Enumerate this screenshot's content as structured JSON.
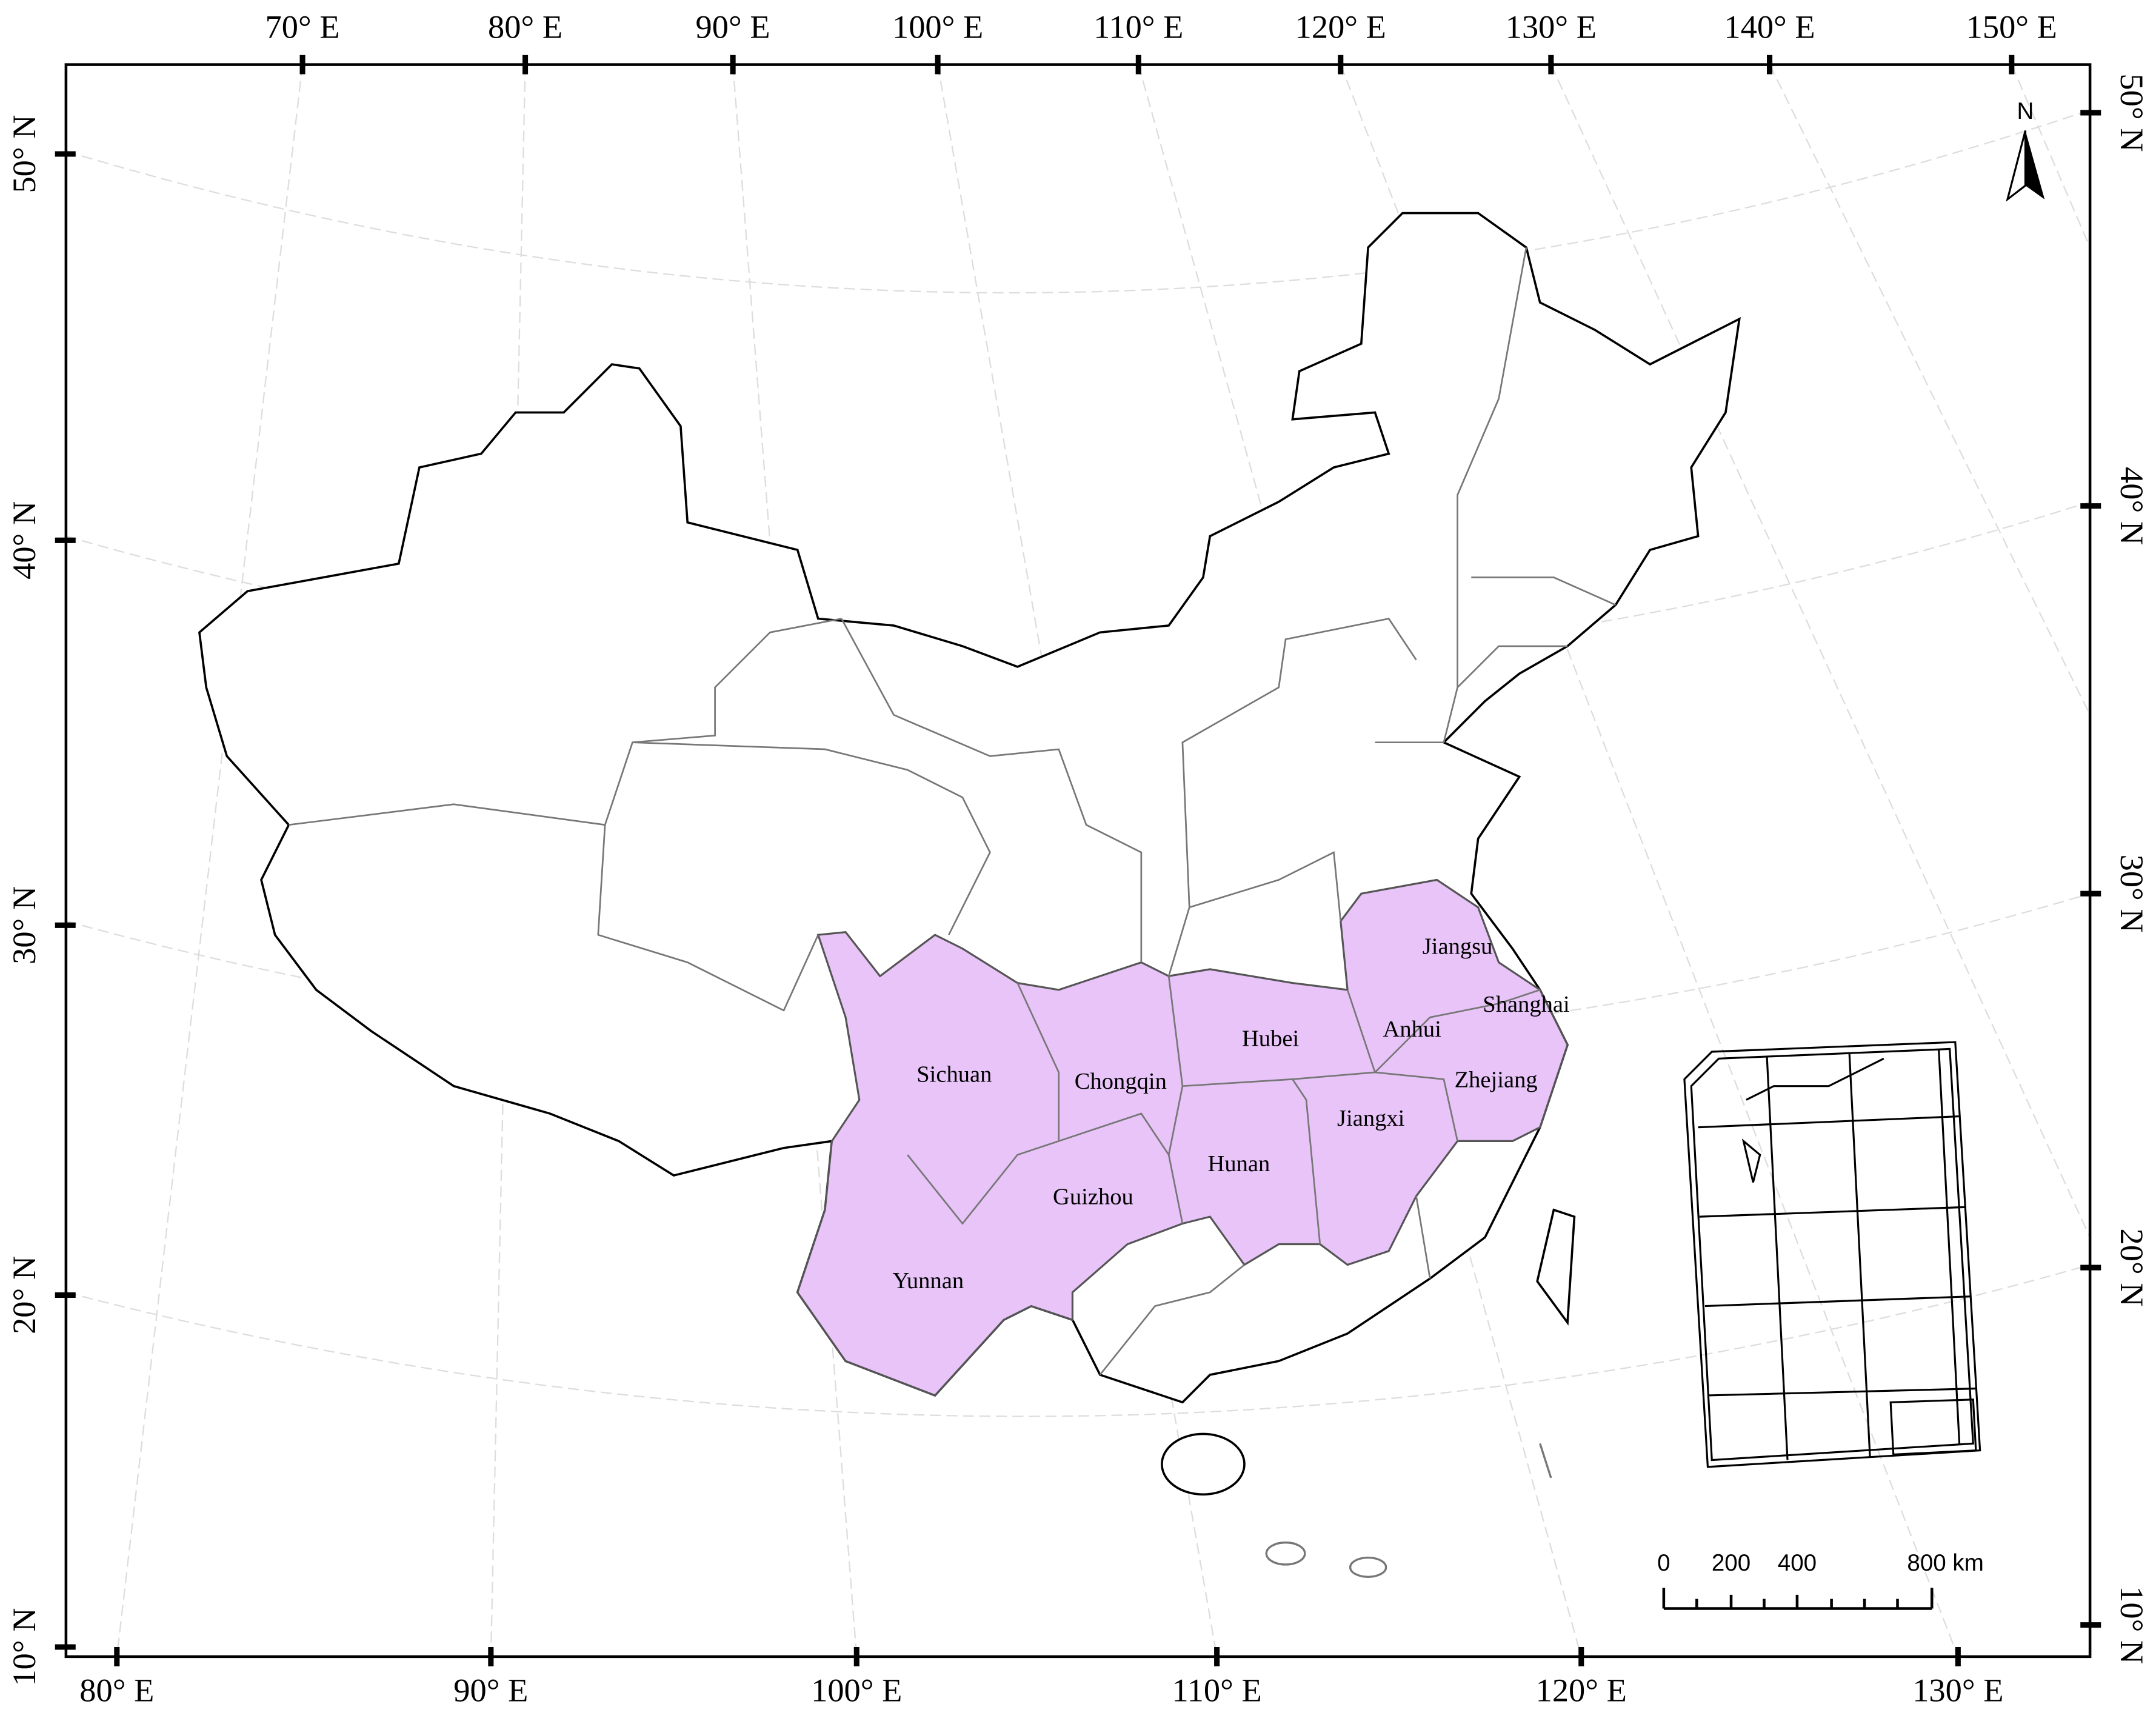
{
  "top_axis": [
    "70° E",
    "80° E",
    "90° E",
    "100° E",
    "110° E",
    "120° E",
    "130° E",
    "140° E",
    "150° E"
  ],
  "bottom_axis": [
    "80° E",
    "90° E",
    "100° E",
    "110° E",
    "120° E",
    "130° E"
  ],
  "left_axis": [
    "50° N",
    "40° N",
    "30° N",
    "20° N",
    "10° N"
  ],
  "right_axis": [
    "50° N",
    "40° N",
    "30° N",
    "20° N",
    "10° N"
  ],
  "provinces": [
    "Jiangsu",
    "Shanghai",
    "Anhui",
    "Hubei",
    "Zhejiang",
    "Sichuan",
    "Chongqin",
    "Jiangxi",
    "Hunan",
    "Guizhou",
    "Yunnan"
  ],
  "scale_bar": [
    "0",
    "200",
    "400",
    "800 km"
  ],
  "north": "N"
}
